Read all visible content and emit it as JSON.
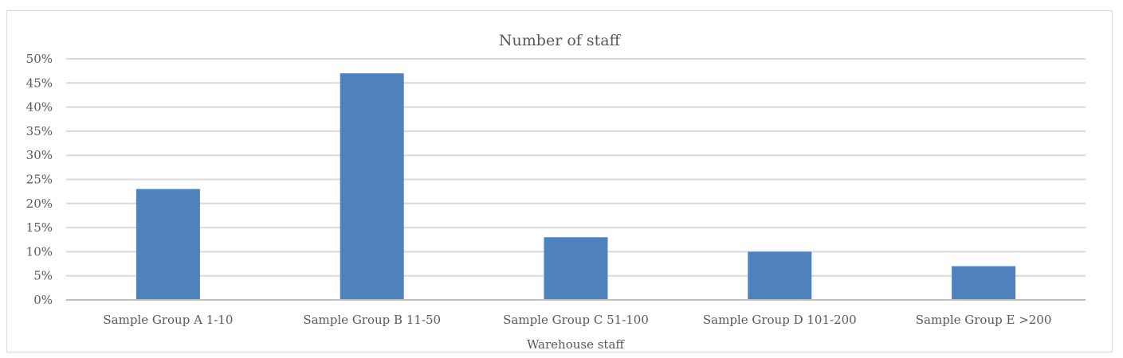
{
  "chart_data": {
    "type": "bar",
    "title": "Number of staff",
    "xlabel": "Warehouse staff",
    "ylabel": "",
    "categories": [
      "Sample Group A 1-10",
      "Sample Group B 11-50",
      "Sample Group C 51-100",
      "Sample Group D 101-200",
      "Sample Group E >200"
    ],
    "values": [
      0.23,
      0.47,
      0.13,
      0.1,
      0.07
    ],
    "ylim": [
      0,
      0.5
    ],
    "yticks": [
      "0%",
      "5%",
      "10%",
      "15%",
      "20%",
      "25%",
      "30%",
      "35%",
      "40%",
      "45%",
      "50%"
    ],
    "grid": true,
    "legend": "none",
    "bar_color": "#4f81bd"
  }
}
